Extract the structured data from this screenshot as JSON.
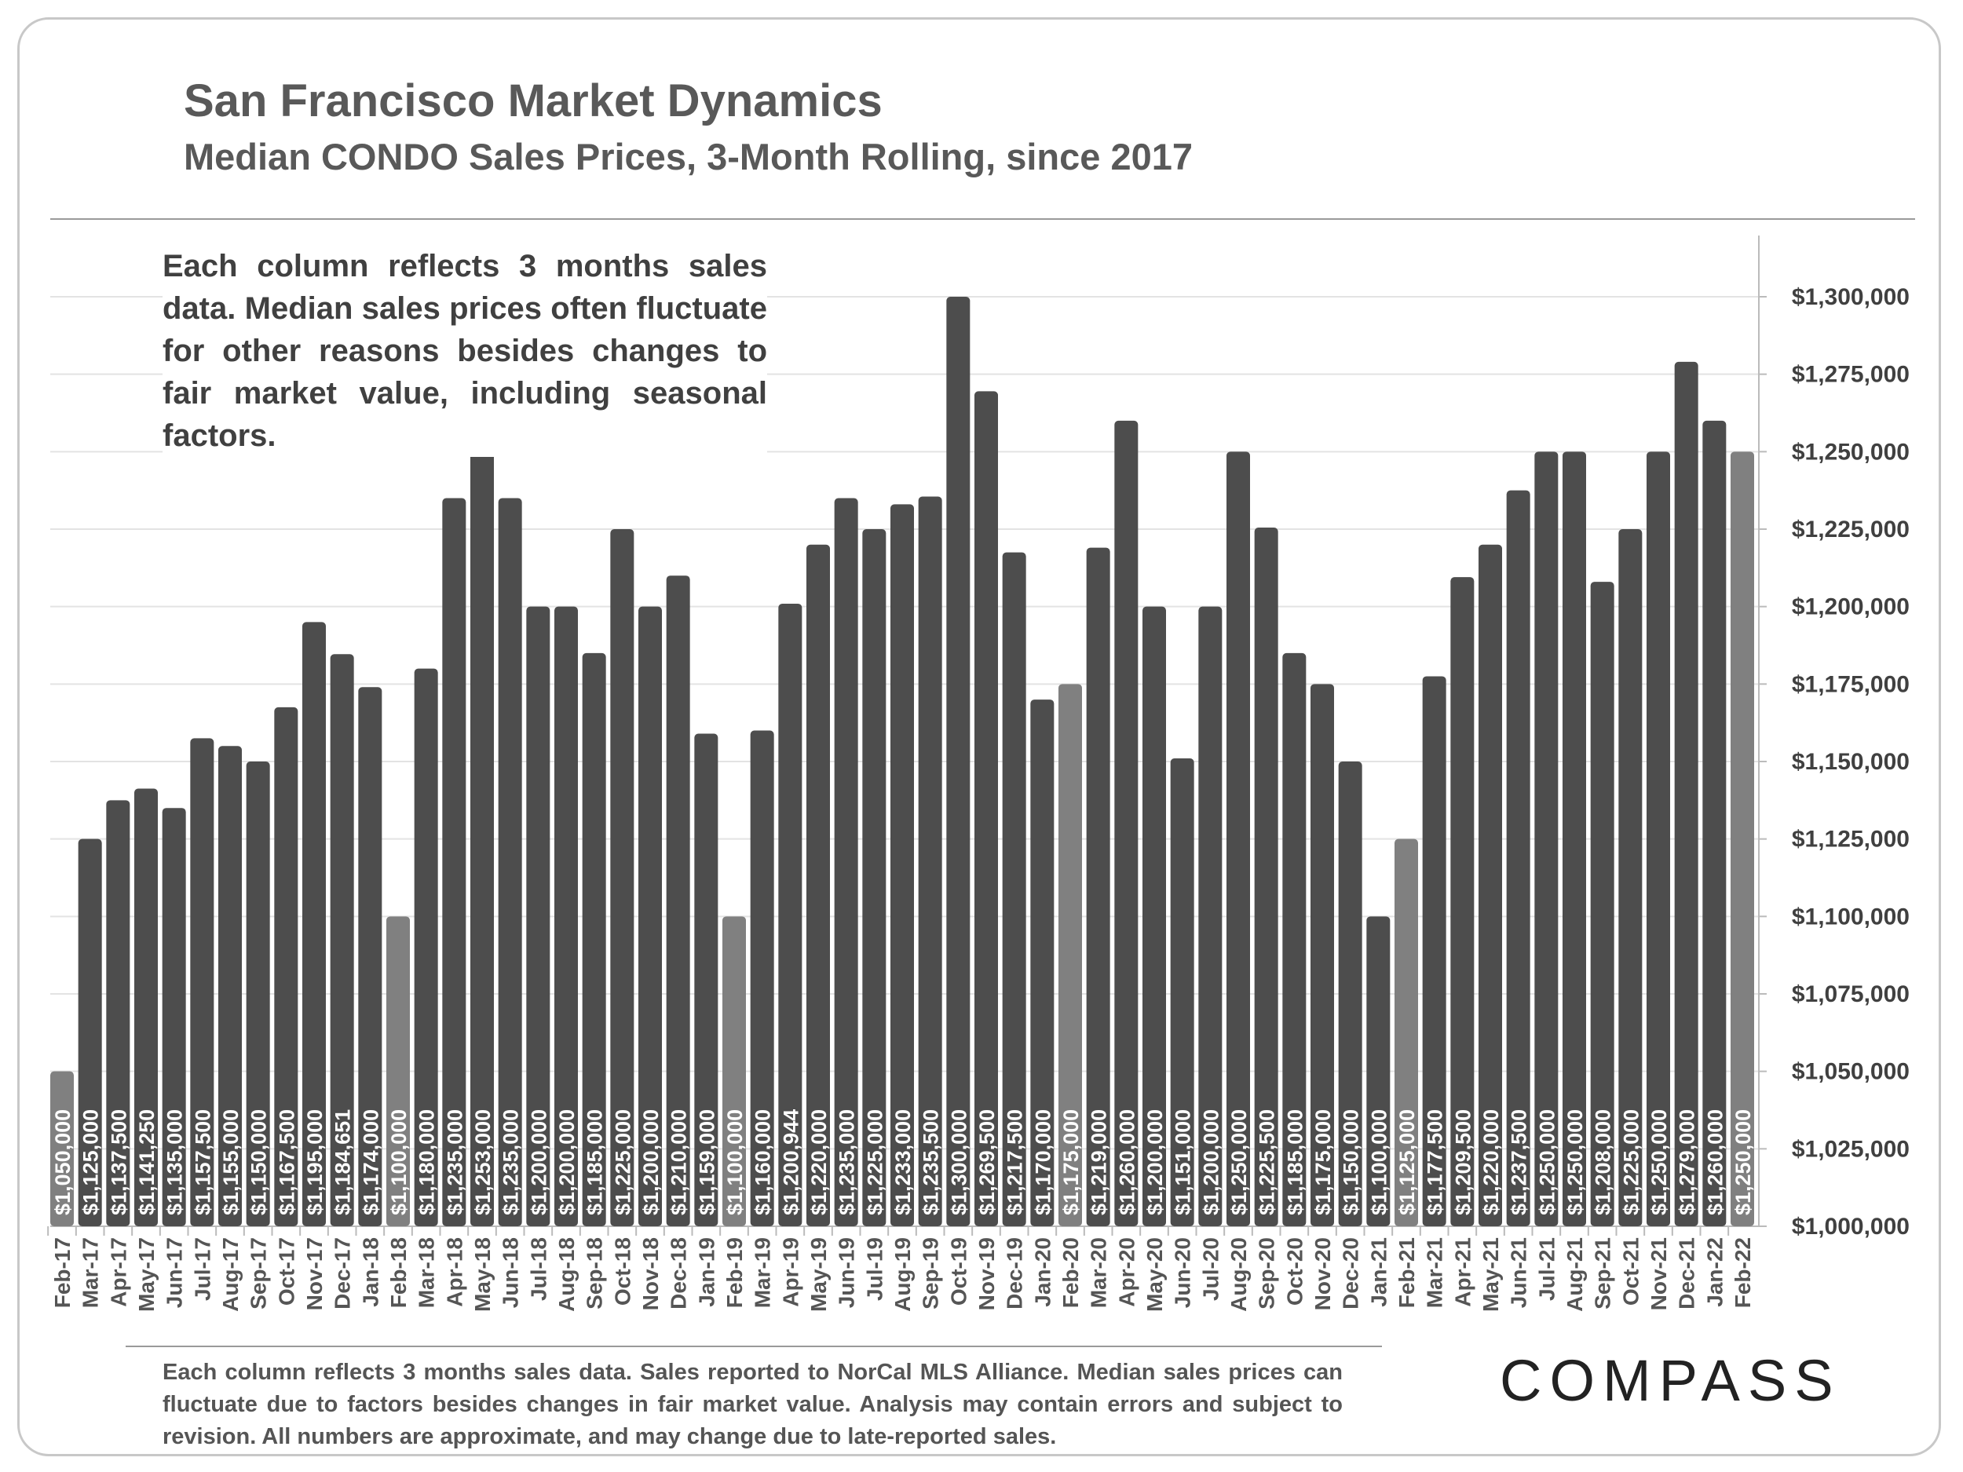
{
  "chart_data": {
    "type": "bar",
    "title": "San Francisco Market Dynamics",
    "subtitle": "Median CONDO Sales Prices, 3-Month Rolling, since 2017",
    "xlabel": "",
    "ylabel": "",
    "ylim": [
      1000000,
      1325000
    ],
    "ytick_step": 25000,
    "grid": true,
    "axis_side": "right",
    "colors": {
      "regular": "#4d4d4d",
      "highlight": "#808080"
    },
    "highlighted_categories": [
      "Feb-17",
      "Feb-18",
      "Feb-19",
      "Feb-20",
      "Feb-21",
      "Feb-22"
    ],
    "categories": [
      "Feb-17",
      "Mar-17",
      "Apr-17",
      "May-17",
      "Jun-17",
      "Jul-17",
      "Aug-17",
      "Sep-17",
      "Oct-17",
      "Nov-17",
      "Dec-17",
      "Jan-18",
      "Feb-18",
      "Mar-18",
      "Apr-18",
      "May-18",
      "Jun-18",
      "Jul-18",
      "Aug-18",
      "Sep-18",
      "Oct-18",
      "Nov-18",
      "Dec-18",
      "Jan-19",
      "Feb-19",
      "Mar-19",
      "Apr-19",
      "May-19",
      "Jun-19",
      "Jul-19",
      "Aug-19",
      "Sep-19",
      "Oct-19",
      "Nov-19",
      "Dec-19",
      "Jan-20",
      "Feb-20",
      "Mar-20",
      "Apr-20",
      "May-20",
      "Jun-20",
      "Jul-20",
      "Aug-20",
      "Sep-20",
      "Oct-20",
      "Nov-20",
      "Dec-20",
      "Jan-21",
      "Feb-21",
      "Mar-21",
      "Apr-21",
      "May-21",
      "Jun-21",
      "Jul-21",
      "Aug-21",
      "Sep-21",
      "Oct-21",
      "Nov-21",
      "Dec-21",
      "Jan-22",
      "Feb-22"
    ],
    "values": [
      1050000,
      1125000,
      1137500,
      1141250,
      1135000,
      1157500,
      1155000,
      1150000,
      1167500,
      1195000,
      1184651,
      1174000,
      1100000,
      1180000,
      1235000,
      1253000,
      1235000,
      1200000,
      1200000,
      1185000,
      1225000,
      1200000,
      1210000,
      1159000,
      1100000,
      1160000,
      1200944,
      1220000,
      1235000,
      1225000,
      1233000,
      1235500,
      1300000,
      1269500,
      1217500,
      1170000,
      1175000,
      1219000,
      1260000,
      1200000,
      1151000,
      1200000,
      1250000,
      1225500,
      1185000,
      1175000,
      1150000,
      1100000,
      1125000,
      1177500,
      1209500,
      1220000,
      1237500,
      1250000,
      1250000,
      1208000,
      1225000,
      1250000,
      1279000,
      1260000,
      1250000
    ],
    "annotation": "Each column reflects 3 months sales data. Median sales prices often fluctuate for other reasons besides changes to fair market value, including seasonal factors."
  },
  "footer": "Each column reflects 3 months sales data. Sales reported to NorCal MLS Alliance. Median sales prices can fluctuate due to factors besides changes in fair market value. Analysis may contain errors and subject to revision. All numbers are approximate, and may change due to late-reported sales.",
  "logo": "COMPASS"
}
